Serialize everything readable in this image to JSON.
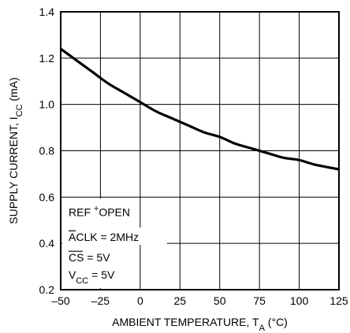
{
  "chart_data": {
    "type": "line",
    "xlabel": "AMBIENT TEMPERATURE, T",
    "xlabel_sub": "A",
    "xlabel_unit": " (°C)",
    "ylabel": "SUPPLY CURRENT, I",
    "ylabel_sub": "CC",
    "ylabel_unit": " (mA)",
    "xlim": [
      -50,
      125
    ],
    "ylim": [
      0.2,
      1.4
    ],
    "xticks": [
      -50,
      -25,
      0,
      25,
      50,
      75,
      100,
      125
    ],
    "xtick_labels": [
      "–50",
      "–25",
      "0",
      "25",
      "50",
      "75",
      "100",
      "125"
    ],
    "yticks": [
      0.2,
      0.4,
      0.6,
      0.8,
      1.0,
      1.2,
      1.4
    ],
    "ytick_labels": [
      "0.2",
      "0.4",
      "0.6",
      "0.8",
      "1.0",
      "1.2",
      "1.4"
    ],
    "grid": true,
    "series": [
      {
        "x": [
          -50,
          -40,
          -30,
          -20,
          -10,
          0,
          10,
          20,
          30,
          40,
          50,
          60,
          70,
          80,
          90,
          100,
          110,
          125
        ],
        "values": [
          1.24,
          1.19,
          1.14,
          1.09,
          1.05,
          1.01,
          0.97,
          0.94,
          0.91,
          0.88,
          0.86,
          0.83,
          0.81,
          0.79,
          0.77,
          0.76,
          0.74,
          0.72
        ]
      }
    ],
    "annotations": [
      {
        "text": "REF",
        "text2": "OPEN",
        "sup": "+"
      },
      {
        "overline": "A",
        "text": "CLK = 2MHz"
      },
      {
        "overline": "CS",
        "text": " = 5V"
      },
      {
        "text": "V",
        "sub": "CC",
        "tail": " = 5V"
      }
    ]
  }
}
